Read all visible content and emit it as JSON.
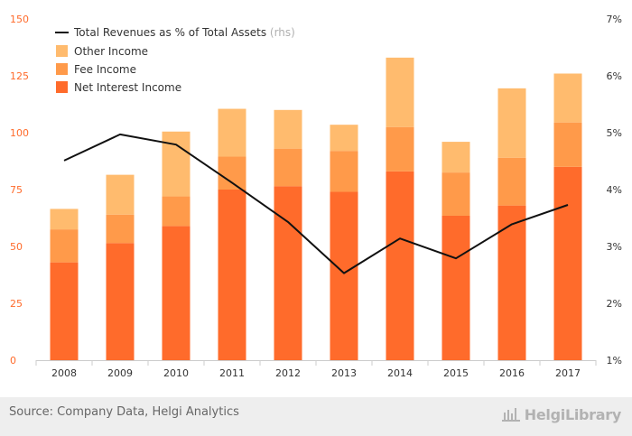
{
  "chart_data": {
    "type": "bar",
    "stacked": true,
    "categories": [
      "2008",
      "2009",
      "2010",
      "2011",
      "2012",
      "2013",
      "2014",
      "2015",
      "2016",
      "2017"
    ],
    "series": [
      {
        "name": "Net Interest Income",
        "color": "#ff6b2b",
        "values": [
          43,
          51.5,
          59,
          75,
          76.5,
          74,
          83,
          63.5,
          68,
          85
        ]
      },
      {
        "name": "Fee Income",
        "color": "#ff9a4a",
        "values": [
          14.5,
          12.5,
          13,
          14.5,
          16.5,
          18,
          19.5,
          19,
          21,
          19.5
        ]
      },
      {
        "name": "Other Income",
        "color": "#ffbb6e",
        "values": [
          9,
          17.5,
          28.5,
          21,
          17,
          11.5,
          30.5,
          13.5,
          30.5,
          21.5
        ]
      }
    ],
    "line_series": {
      "name": "Total Revenues as % of Total Assets",
      "axis_note": "(rhs)",
      "color": "#111111",
      "values": [
        4.51,
        4.97,
        4.79,
        4.12,
        3.43,
        2.53,
        3.14,
        2.79,
        3.39,
        3.73
      ]
    },
    "ylim": [
      0,
      150
    ],
    "yticks": [
      "0",
      "25",
      "50",
      "75",
      "100",
      "125",
      "150"
    ],
    "y2lim": [
      1,
      7
    ],
    "y2ticks": [
      "1%",
      "2%",
      "3%",
      "4%",
      "5%",
      "6%",
      "7%"
    ],
    "legend_position": "top-left",
    "grid": false
  },
  "footer": {
    "source": "Source: Company Data, Helgi Analytics",
    "logo": "HelgiLibrary"
  }
}
